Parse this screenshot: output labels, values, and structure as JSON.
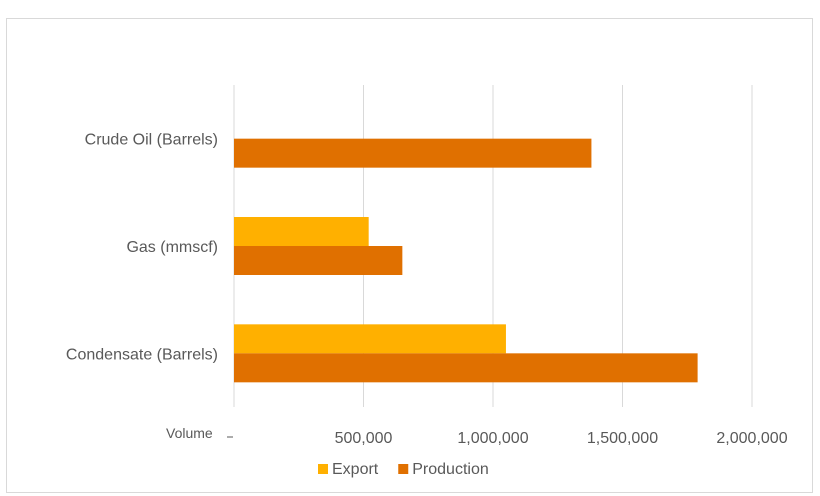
{
  "chart_data": {
    "type": "bar",
    "orientation": "horizontal",
    "categories": [
      "Crude Oil (Barrels)",
      "Gas (mmscf)",
      "Condensate (Barrels)"
    ],
    "series": [
      {
        "name": "Export",
        "color": "#FFB000",
        "values": [
          0,
          520000,
          1050000
        ]
      },
      {
        "name": "Production",
        "color": "#E07000",
        "values": [
          1380000,
          650000,
          1790000
        ]
      }
    ],
    "xlabel": "Volume",
    "xlim": [
      0,
      2000000
    ],
    "xticks": [
      500000,
      1000000,
      1500000,
      2000000
    ],
    "xtick_labels": [
      "500,000",
      "1,000,000",
      "1,500,000",
      "2,000,000"
    ],
    "grid": "vertical",
    "legend": [
      "Export",
      "Production"
    ],
    "legend_position": "bottom"
  }
}
